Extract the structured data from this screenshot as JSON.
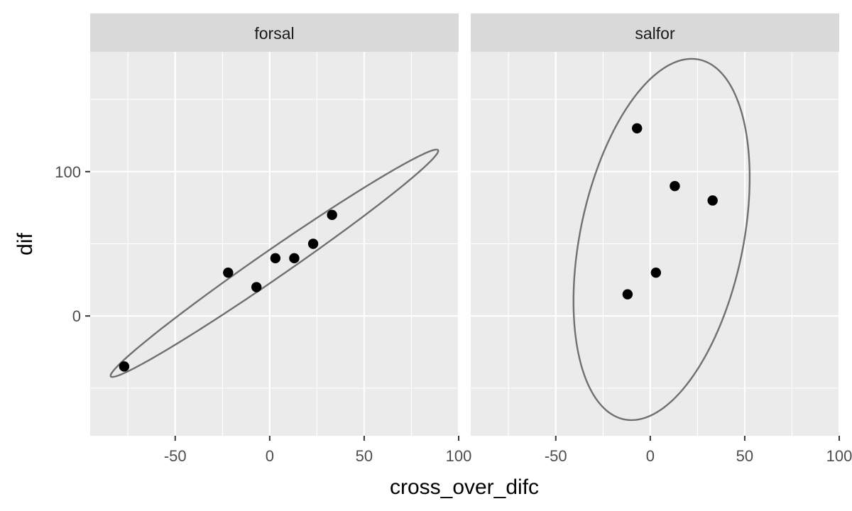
{
  "chart_data": {
    "type": "scatter",
    "xlabel": "cross_over_difc",
    "ylabel": "dif",
    "xlim": [
      -95,
      100
    ],
    "ylim": [
      -83,
      183
    ],
    "x_ticks": [
      -50,
      0,
      50,
      100
    ],
    "x_tick_labels": [
      "-50",
      "0",
      "50",
      "100"
    ],
    "y_ticks": [
      0,
      100
    ],
    "y_tick_labels": [
      "0",
      "100"
    ],
    "grid": true,
    "ellipse_color": "#707070",
    "point_color": "#000000",
    "panel_color": "#ebebeb",
    "strip_color": "#d9d9d9",
    "panels": [
      {
        "strip": "forsal",
        "points": [
          {
            "x": -77,
            "y": -35
          },
          {
            "x": -22,
            "y": 30
          },
          {
            "x": -7,
            "y": 20
          },
          {
            "x": 3,
            "y": 40
          },
          {
            "x": 13,
            "y": 40
          },
          {
            "x": 23,
            "y": 50
          },
          {
            "x": 33,
            "y": 70
          }
        ],
        "ellipse": {
          "cx": 2.5,
          "cy": 36.5,
          "major_end": [
            89,
            115
          ],
          "minor_end": [
            -3.3,
            42.9
          ]
        }
      },
      {
        "strip": "salfor",
        "points": [
          {
            "x": -7,
            "y": 130
          },
          {
            "x": 13,
            "y": 90
          },
          {
            "x": 33,
            "y": 80
          },
          {
            "x": 3,
            "y": 30
          },
          {
            "x": -12,
            "y": 15
          }
        ],
        "ellipse": {
          "cx": 6,
          "cy": 53,
          "major_end": [
            24,
            178
          ],
          "minor_end": [
            49,
            47
          ]
        }
      }
    ]
  }
}
